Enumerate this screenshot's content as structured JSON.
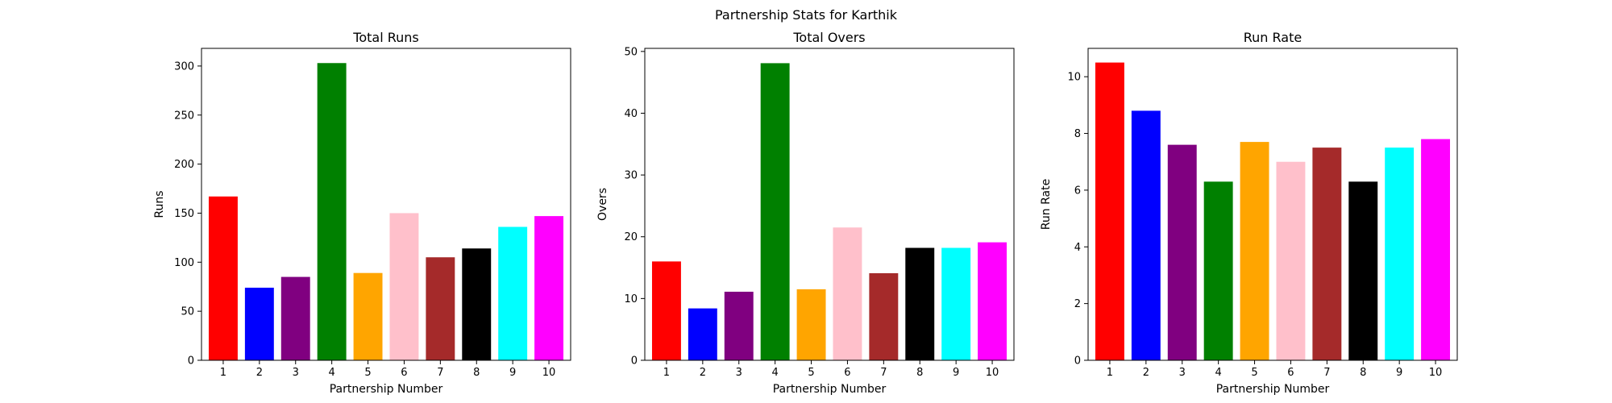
{
  "figure": {
    "suptitle": "Partnership Stats for Karthik"
  },
  "chart_data": [
    {
      "type": "bar",
      "title": "Total Runs",
      "xlabel": "Partnership Number",
      "ylabel": "Runs",
      "categories": [
        "1",
        "2",
        "3",
        "4",
        "5",
        "6",
        "7",
        "8",
        "9",
        "10"
      ],
      "values": [
        167,
        74,
        85,
        303,
        89,
        150,
        105,
        114,
        136,
        147
      ],
      "colors": [
        "#ff0000",
        "#0000ff",
        "#800080",
        "#008000",
        "#ffa500",
        "#ffc0cb",
        "#a52a2a",
        "#000000",
        "#00ffff",
        "#ff00ff"
      ],
      "ylim": [
        0,
        318
      ],
      "yticks": [
        0,
        50,
        100,
        150,
        200,
        250,
        300
      ],
      "grid": false,
      "legend": "none"
    },
    {
      "type": "bar",
      "title": "Total Overs",
      "xlabel": "Partnership Number",
      "ylabel": "Overs",
      "categories": [
        "1",
        "2",
        "3",
        "4",
        "5",
        "6",
        "7",
        "8",
        "9",
        "10"
      ],
      "values": [
        16.0,
        8.4,
        11.1,
        48.1,
        11.5,
        21.5,
        14.1,
        18.2,
        18.2,
        19.1
      ],
      "colors": [
        "#ff0000",
        "#0000ff",
        "#800080",
        "#008000",
        "#ffa500",
        "#ffc0cb",
        "#a52a2a",
        "#000000",
        "#00ffff",
        "#ff00ff"
      ],
      "ylim": [
        0,
        50.5
      ],
      "yticks": [
        0,
        10,
        20,
        30,
        40,
        50
      ],
      "grid": false,
      "legend": "none"
    },
    {
      "type": "bar",
      "title": "Run Rate",
      "xlabel": "Partnership Number",
      "ylabel": "Run Rate",
      "categories": [
        "1",
        "2",
        "3",
        "4",
        "5",
        "6",
        "7",
        "8",
        "9",
        "10"
      ],
      "values": [
        10.5,
        8.8,
        7.6,
        6.3,
        7.7,
        7.0,
        7.5,
        6.3,
        7.5,
        7.8
      ],
      "colors": [
        "#ff0000",
        "#0000ff",
        "#800080",
        "#008000",
        "#ffa500",
        "#ffc0cb",
        "#a52a2a",
        "#000000",
        "#00ffff",
        "#ff00ff"
      ],
      "ylim": [
        0,
        11.0
      ],
      "yticks": [
        0,
        2,
        4,
        6,
        8,
        10
      ],
      "grid": false,
      "legend": "none"
    }
  ]
}
